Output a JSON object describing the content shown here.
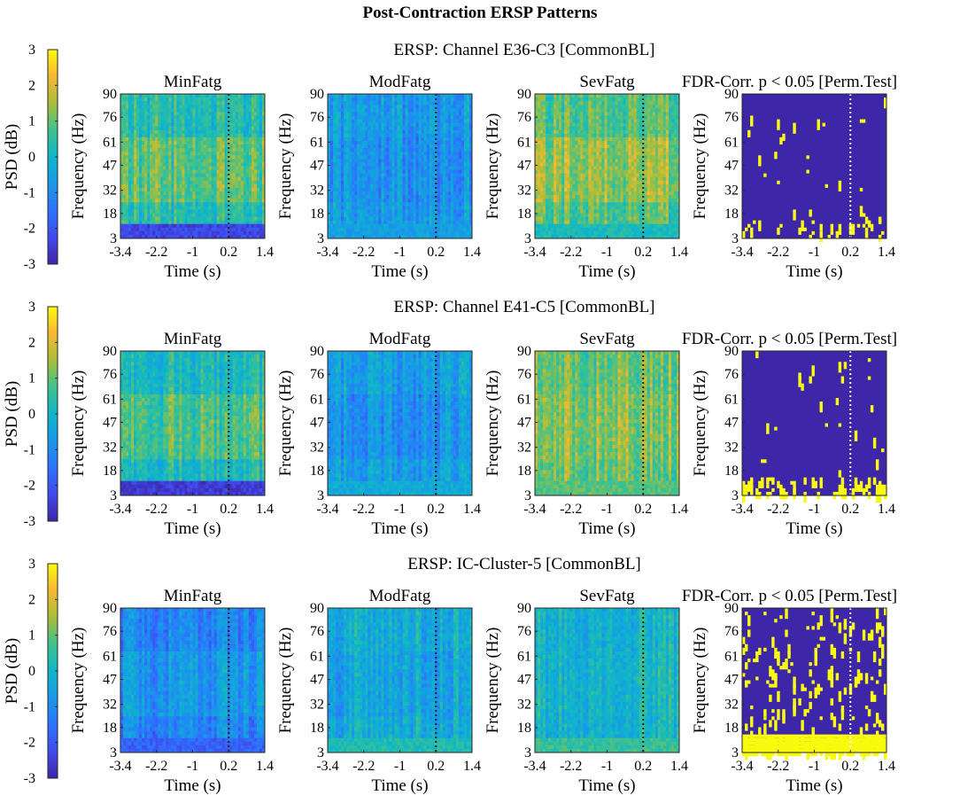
{
  "chart_data": {
    "type": "heatmap",
    "title": "Post-Contraction ERSP Patterns",
    "colorbar": {
      "label": "PSD (dB)",
      "range": [
        -3,
        3
      ],
      "ticks": [
        "3",
        "2",
        "1",
        "0",
        "-1",
        "-2",
        "-3"
      ],
      "colormap": "parula"
    },
    "panel_titles": [
      "MinFatg",
      "ModFatg",
      "SevFatg",
      "FDR-Corr. p < 0.05 [Perm.Test]"
    ],
    "xlabel": "Time (s)",
    "ylabel": "Frequency (Hz)",
    "xticks": [
      "-3.4",
      "-2.2",
      "-1",
      "0.2",
      "1.4"
    ],
    "yticks": [
      "90",
      "76",
      "61",
      "47",
      "32",
      "18",
      "3"
    ],
    "xlim": [
      -3.4,
      1.4
    ],
    "ylim": [
      3,
      90
    ],
    "event_marker_time": 0.2,
    "significance_colors": {
      "significant": "#f9fb0e",
      "non_significant": "#3e26a8"
    },
    "rows": [
      {
        "title": "ERSP: Channel E36-C3 [CommonBL]",
        "panels": [
          {
            "condition": "MinFatg",
            "mean_db": 0.3,
            "low_band_db": -2.3,
            "high_band_db": 0.9
          },
          {
            "condition": "ModFatg",
            "mean_db": -0.7,
            "low_band_db": -0.6,
            "high_band_db": -0.9
          },
          {
            "condition": "SevFatg",
            "mean_db": 0.9,
            "low_band_db": 0.2,
            "high_band_db": 1.4
          },
          {
            "condition": "FDR-Corr. p < 0.05 [Perm.Test]",
            "significant_fraction": 0.03
          }
        ]
      },
      {
        "title": "ERSP: Channel E41-C5 [CommonBL]",
        "panels": [
          {
            "condition": "MinFatg",
            "mean_db": 0.2,
            "low_band_db": -2.5,
            "high_band_db": 0.8
          },
          {
            "condition": "ModFatg",
            "mean_db": -0.6,
            "low_band_db": -0.3,
            "high_band_db": -0.9
          },
          {
            "condition": "SevFatg",
            "mean_db": 1.1,
            "low_band_db": 0.9,
            "high_band_db": 1.3
          },
          {
            "condition": "FDR-Corr. p < 0.05 [Perm.Test]",
            "significant_fraction": 0.04
          }
        ]
      },
      {
        "title": "ERSP: IC-Cluster-5 [CommonBL]",
        "panels": [
          {
            "condition": "MinFatg",
            "mean_db": -1.2,
            "low_band_db": -1.8,
            "high_band_db": -0.8
          },
          {
            "condition": "ModFatg",
            "mean_db": -0.2,
            "low_band_db": 0.3,
            "high_band_db": -0.4
          },
          {
            "condition": "SevFatg",
            "mean_db": 0.0,
            "low_band_db": 0.6,
            "high_band_db": 0.1
          },
          {
            "condition": "FDR-Corr. p < 0.05 [Perm.Test]",
            "significant_fraction": 0.2
          }
        ]
      }
    ]
  }
}
